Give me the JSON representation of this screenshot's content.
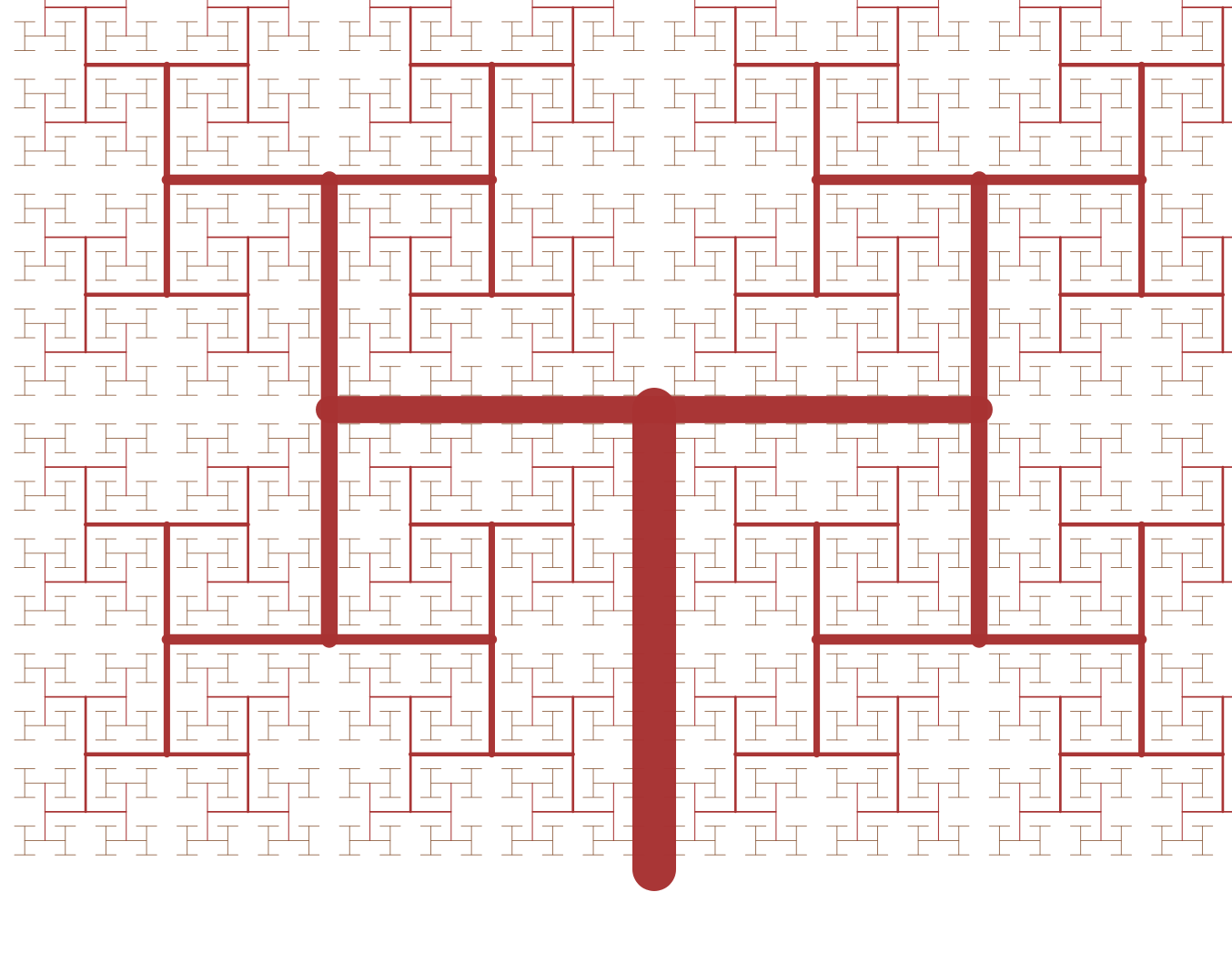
{
  "figure": {
    "kind": "fractal-tree",
    "background_color": "#ffffff",
    "branch_color": "#a83232",
    "leaf_color": "#8b5a3c",
    "recursion_depth": 11
  }
}
